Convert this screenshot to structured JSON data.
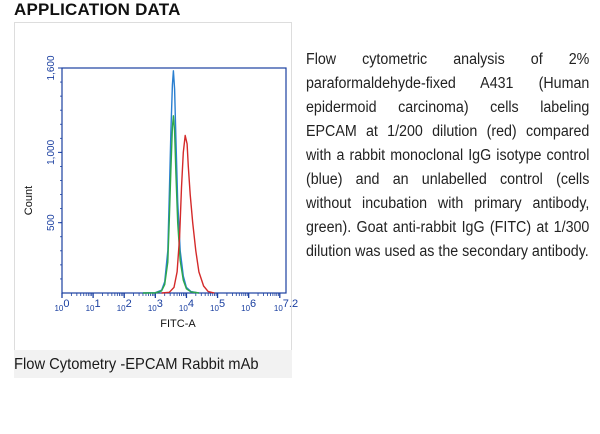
{
  "header": {
    "title": "APPLICATION DATA"
  },
  "figure": {
    "caption": "Flow Cytometry -EPCAM Rabbit mAb"
  },
  "description": "Flow cytometric analysis of 2% paraformaldehyde-fixed A431 (Human epidermoid carcinoma) cells labeling EPCAM at 1/200 dilution (red) compared with a rabbit monoclonal IgG isotype control (blue) and an unlabelled control (cells without incubation with primary antibody, green). Goat anti-rabbit IgG (FITC) at 1/300 dilution was used as the secondary antibody.",
  "chart_data": {
    "type": "line",
    "xlabel": "FITC-A",
    "ylabel": "Count",
    "xscale": "log",
    "xlim": [
      0,
      7.2
    ],
    "ylim": [
      0,
      1600
    ],
    "x_tick_labels": [
      {
        "base": "10",
        "exp": "0",
        "value": 0
      },
      {
        "base": "10",
        "exp": "1",
        "value": 1
      },
      {
        "base": "10",
        "exp": "2",
        "value": 2
      },
      {
        "base": "10",
        "exp": "3",
        "value": 3
      },
      {
        "base": "10",
        "exp": "4",
        "value": 4
      },
      {
        "base": "10",
        "exp": "5",
        "value": 5
      },
      {
        "base": "10",
        "exp": "6",
        "value": 6
      },
      {
        "base": "10",
        "exp": "7.2",
        "value": 7.2
      }
    ],
    "y_tick_labels": [
      {
        "label": "500",
        "value": 500
      },
      {
        "label": "1,000",
        "value": 1000
      },
      {
        "label": "1,600",
        "value": 1600
      }
    ],
    "grid": false,
    "legend": "none",
    "colors": {
      "axis": "#1a3fa0",
      "tick_text": "#1a3fa0",
      "label_text": "#111111"
    },
    "series": [
      {
        "color": "#2a7fd0",
        "points": [
          [
            2.6,
            0
          ],
          [
            3.0,
            2
          ],
          [
            3.2,
            20
          ],
          [
            3.3,
            80
          ],
          [
            3.4,
            300
          ],
          [
            3.45,
            700
          ],
          [
            3.5,
            1150
          ],
          [
            3.55,
            1480
          ],
          [
            3.58,
            1580
          ],
          [
            3.62,
            1450
          ],
          [
            3.66,
            1100
          ],
          [
            3.72,
            650
          ],
          [
            3.8,
            300
          ],
          [
            3.9,
            120
          ],
          [
            4.0,
            40
          ],
          [
            4.15,
            10
          ],
          [
            4.4,
            0
          ]
        ]
      },
      {
        "color": "#2ea84a",
        "points": [
          [
            2.6,
            0
          ],
          [
            3.0,
            1
          ],
          [
            3.2,
            15
          ],
          [
            3.3,
            60
          ],
          [
            3.4,
            220
          ],
          [
            3.45,
            520
          ],
          [
            3.5,
            880
          ],
          [
            3.55,
            1180
          ],
          [
            3.58,
            1260
          ],
          [
            3.62,
            1150
          ],
          [
            3.66,
            850
          ],
          [
            3.72,
            500
          ],
          [
            3.8,
            230
          ],
          [
            3.9,
            90
          ],
          [
            4.0,
            30
          ],
          [
            4.15,
            8
          ],
          [
            4.4,
            0
          ]
        ]
      },
      {
        "color": "#d42a2a",
        "points": [
          [
            3.2,
            0
          ],
          [
            3.45,
            5
          ],
          [
            3.6,
            40
          ],
          [
            3.7,
            150
          ],
          [
            3.78,
            400
          ],
          [
            3.84,
            750
          ],
          [
            3.9,
            1000
          ],
          [
            3.96,
            1120
          ],
          [
            4.02,
            1060
          ],
          [
            4.06,
            900
          ],
          [
            4.12,
            700
          ],
          [
            4.2,
            500
          ],
          [
            4.3,
            300
          ],
          [
            4.4,
            150
          ],
          [
            4.55,
            50
          ],
          [
            4.7,
            10
          ],
          [
            4.9,
            0
          ]
        ]
      }
    ]
  }
}
